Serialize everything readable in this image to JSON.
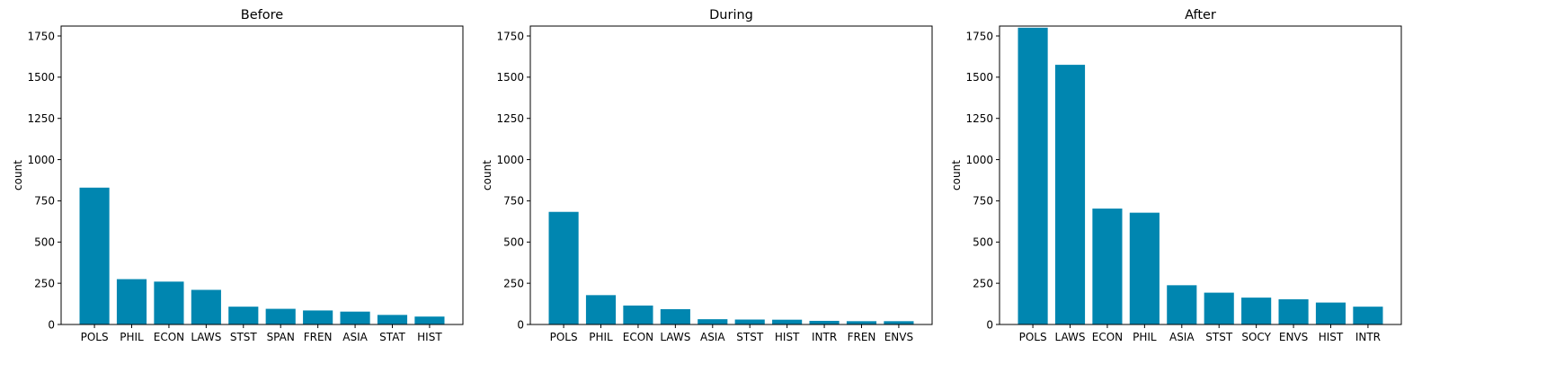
{
  "chart_data": [
    {
      "type": "bar",
      "title": "Before",
      "xlabel": "",
      "ylabel": "count",
      "ylim": [
        0,
        1810
      ],
      "yticks": [
        0,
        250,
        500,
        750,
        1000,
        1250,
        1500,
        1750
      ],
      "categories": [
        "POLS",
        "PHIL",
        "ECON",
        "LAWS",
        "STST",
        "SPAN",
        "FREN",
        "ASIA",
        "STAT",
        "HIST"
      ],
      "values": [
        830,
        275,
        260,
        210,
        108,
        95,
        85,
        78,
        58,
        48
      ],
      "bar_color": "#0086b0",
      "grid": false
    },
    {
      "type": "bar",
      "title": "During",
      "xlabel": "",
      "ylabel": "count",
      "ylim": [
        0,
        1810
      ],
      "yticks": [
        0,
        250,
        500,
        750,
        1000,
        1250,
        1500,
        1750
      ],
      "categories": [
        "POLS",
        "PHIL",
        "ECON",
        "LAWS",
        "ASIA",
        "STST",
        "HIST",
        "INTR",
        "FREN",
        "ENVS"
      ],
      "values": [
        683,
        178,
        115,
        93,
        32,
        30,
        29,
        22,
        20,
        20
      ],
      "bar_color": "#0086b0",
      "grid": false
    },
    {
      "type": "bar",
      "title": "After",
      "xlabel": "",
      "ylabel": "count",
      "ylim": [
        0,
        1810
      ],
      "yticks": [
        0,
        250,
        500,
        750,
        1000,
        1250,
        1500,
        1750
      ],
      "categories": [
        "POLS",
        "LAWS",
        "ECON",
        "PHIL",
        "ASIA",
        "STST",
        "SOCY",
        "ENVS",
        "HIST",
        "INTR"
      ],
      "values": [
        1800,
        1575,
        703,
        678,
        238,
        193,
        163,
        153,
        133,
        108
      ],
      "bar_color": "#0086b0",
      "grid": false
    }
  ]
}
